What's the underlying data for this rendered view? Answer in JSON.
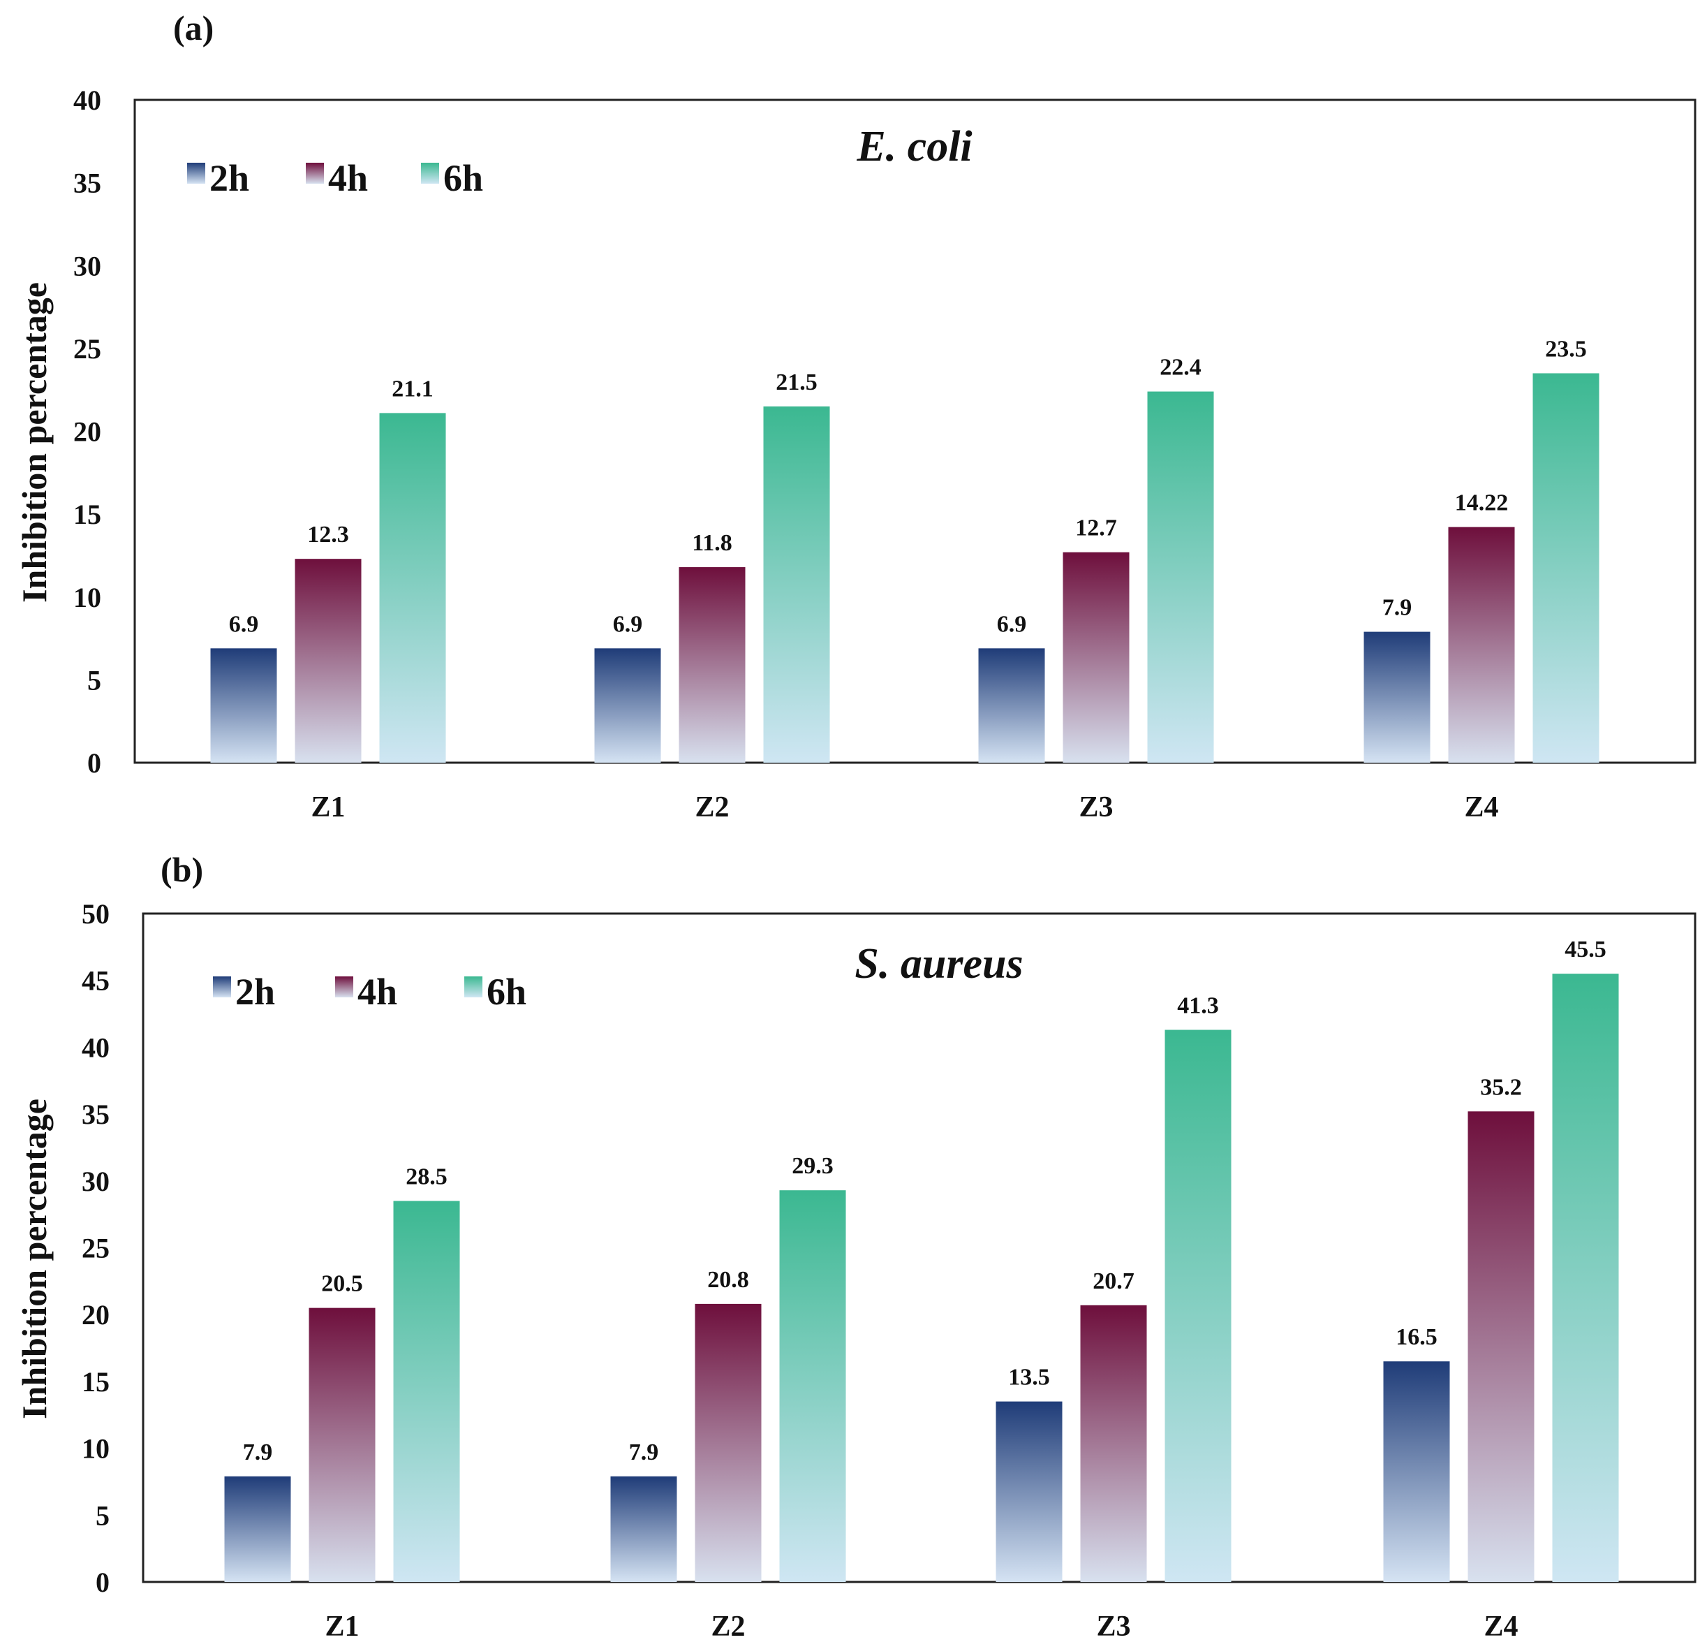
{
  "chart_data": [
    {
      "type": "bar",
      "panel": "(a)",
      "title": "E. coli",
      "xlabel": "",
      "ylabel": "Inhibition percentage",
      "ylim": [
        0,
        40
      ],
      "yticks": [
        0,
        5,
        10,
        15,
        20,
        25,
        30,
        35,
        40
      ],
      "categories": [
        "Z1",
        "Z2",
        "Z3",
        "Z4"
      ],
      "legend_position": "top-left",
      "grid": false,
      "series": [
        {
          "name": "2h",
          "values": [
            6.9,
            6.9,
            6.9,
            7.9
          ],
          "labels": [
            "6.9",
            "6.9",
            "6.9",
            "7.9"
          ],
          "color_top": "#1f3c78",
          "color_bottom": "#d5e3f3"
        },
        {
          "name": "4h",
          "values": [
            12.3,
            11.8,
            12.7,
            14.22
          ],
          "labels": [
            "12.3",
            "11.8",
            "12.7",
            "14.22"
          ],
          "color_top": "#6e0f3c",
          "color_bottom": "#d8e1ef"
        },
        {
          "name": "6h",
          "values": [
            21.1,
            21.5,
            22.4,
            23.5
          ],
          "labels": [
            "21.1",
            "21.5",
            "22.4",
            "23.5"
          ],
          "color_top": "#3bb891",
          "color_bottom": "#cfe6f3"
        }
      ]
    },
    {
      "type": "bar",
      "panel": "(b)",
      "title": "S. aureus",
      "xlabel": "",
      "ylabel": "Inhibition percentage",
      "ylim": [
        0,
        50
      ],
      "yticks": [
        0,
        5,
        10,
        15,
        20,
        25,
        30,
        35,
        40,
        45,
        50
      ],
      "categories": [
        "Z1",
        "Z2",
        "Z3",
        "Z4"
      ],
      "legend_position": "top-left",
      "grid": false,
      "series": [
        {
          "name": "2h",
          "values": [
            7.9,
            7.9,
            13.5,
            16.5
          ],
          "labels": [
            "7.9",
            "7.9",
            "13.5",
            "16.5"
          ],
          "color_top": "#1f3c78",
          "color_bottom": "#d5e3f3"
        },
        {
          "name": "4h",
          "values": [
            20.5,
            20.8,
            20.7,
            35.2
          ],
          "labels": [
            "20.5",
            "20.8",
            "20.7",
            "35.2"
          ],
          "color_top": "#6e0f3c",
          "color_bottom": "#d8e1ef"
        },
        {
          "name": "6h",
          "values": [
            28.5,
            29.3,
            41.3,
            45.5
          ],
          "labels": [
            "28.5",
            "29.3",
            "41.3",
            "45.5"
          ],
          "color_top": "#3bb891",
          "color_bottom": "#cfe6f3"
        }
      ]
    }
  ]
}
